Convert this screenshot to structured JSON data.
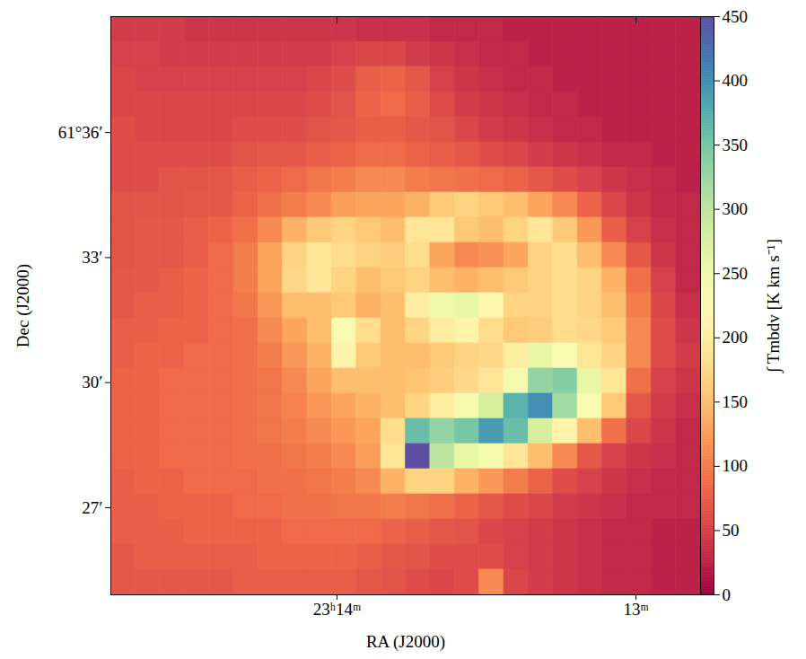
{
  "chart_data": {
    "type": "heatmap",
    "x_label": "RA (J2000)",
    "y_label": "Dec (J2000)",
    "xlim": [
      14.757,
      12.784
    ],
    "xticks": [
      {
        "value": 14,
        "label": "23ʰ14ᵐ"
      },
      {
        "value": 13,
        "label": "13ᵐ"
      }
    ],
    "ylim": [
      24.91,
      38.78
    ],
    "yticks": [
      {
        "value": 27,
        "label": "27′"
      },
      {
        "value": 30,
        "label": "30′"
      },
      {
        "value": 33,
        "label": "33′"
      },
      {
        "value": 36,
        "label": "61°36′"
      }
    ],
    "color": "spectral",
    "colorbar": {
      "label": "∫ Tmbdv [K km s⁻¹]",
      "range": [
        0,
        450
      ],
      "ticks": [
        0,
        50,
        100,
        150,
        200,
        250,
        300,
        350,
        400,
        450
      ]
    },
    "cells": [
      [
        45,
        45,
        45,
        40,
        40,
        40,
        40,
        40,
        40,
        40,
        35,
        35,
        35,
        30,
        30,
        30,
        25,
        25,
        25,
        25,
        25,
        25,
        25,
        25
      ],
      [
        50,
        50,
        45,
        45,
        45,
        45,
        45,
        45,
        45,
        50,
        55,
        55,
        45,
        40,
        35,
        30,
        30,
        25,
        25,
        25,
        25,
        25,
        25,
        25
      ],
      [
        55,
        50,
        50,
        50,
        50,
        50,
        50,
        50,
        55,
        60,
        75,
        80,
        70,
        50,
        40,
        35,
        30,
        30,
        25,
        25,
        25,
        25,
        25,
        25
      ],
      [
        55,
        55,
        55,
        55,
        55,
        55,
        55,
        55,
        60,
        65,
        80,
        85,
        75,
        60,
        45,
        40,
        35,
        30,
        30,
        25,
        25,
        25,
        25,
        25
      ],
      [
        60,
        55,
        55,
        55,
        55,
        60,
        60,
        60,
        65,
        70,
        75,
        75,
        70,
        65,
        55,
        45,
        40,
        35,
        30,
        30,
        25,
        25,
        25,
        25
      ],
      [
        60,
        60,
        60,
        60,
        60,
        65,
        70,
        70,
        75,
        80,
        85,
        85,
        80,
        75,
        70,
        60,
        55,
        45,
        40,
        35,
        30,
        30,
        25,
        25
      ],
      [
        60,
        60,
        65,
        65,
        70,
        75,
        80,
        85,
        95,
        100,
        110,
        110,
        100,
        95,
        90,
        85,
        80,
        70,
        60,
        50,
        40,
        35,
        30,
        25
      ],
      [
        65,
        65,
        65,
        70,
        70,
        80,
        90,
        100,
        110,
        125,
        130,
        130,
        140,
        160,
        170,
        160,
        150,
        130,
        110,
        80,
        55,
        40,
        30,
        30
      ],
      [
        65,
        70,
        70,
        75,
        80,
        90,
        110,
        140,
        160,
        170,
        160,
        150,
        190,
        190,
        160,
        150,
        170,
        190,
        160,
        120,
        75,
        50,
        35,
        30
      ],
      [
        65,
        70,
        70,
        75,
        85,
        100,
        130,
        170,
        190,
        180,
        170,
        165,
        180,
        130,
        110,
        115,
        130,
        170,
        180,
        150,
        110,
        70,
        40,
        30
      ],
      [
        70,
        70,
        75,
        80,
        85,
        100,
        130,
        175,
        190,
        170,
        150,
        160,
        170,
        150,
        140,
        150,
        160,
        170,
        180,
        170,
        140,
        90,
        50,
        30
      ],
      [
        70,
        75,
        75,
        80,
        85,
        95,
        120,
        150,
        150,
        160,
        140,
        150,
        200,
        250,
        260,
        220,
        170,
        170,
        180,
        170,
        150,
        100,
        55,
        35
      ],
      [
        75,
        75,
        80,
        80,
        85,
        90,
        110,
        130,
        150,
        230,
        180,
        150,
        170,
        200,
        210,
        180,
        160,
        165,
        180,
        175,
        160,
        110,
        60,
        40
      ],
      [
        75,
        80,
        80,
        85,
        85,
        90,
        100,
        120,
        140,
        210,
        160,
        150,
        150,
        160,
        170,
        175,
        200,
        260,
        230,
        190,
        170,
        110,
        60,
        45
      ],
      [
        80,
        80,
        85,
        85,
        85,
        90,
        95,
        110,
        130,
        150,
        150,
        150,
        155,
        165,
        175,
        190,
        240,
        330,
        340,
        260,
        190,
        90,
        50,
        40
      ],
      [
        80,
        80,
        85,
        85,
        85,
        90,
        95,
        105,
        120,
        130,
        140,
        150,
        170,
        200,
        240,
        280,
        370,
        400,
        320,
        230,
        160,
        70,
        45,
        35
      ],
      [
        80,
        80,
        85,
        85,
        85,
        90,
        95,
        100,
        110,
        120,
        130,
        180,
        360,
        330,
        350,
        390,
        360,
        280,
        210,
        150,
        90,
        55,
        40,
        30
      ],
      [
        80,
        80,
        85,
        85,
        85,
        90,
        90,
        95,
        100,
        110,
        125,
        190,
        450,
        300,
        260,
        240,
        190,
        150,
        110,
        70,
        50,
        40,
        35,
        30
      ],
      [
        75,
        80,
        80,
        85,
        85,
        85,
        90,
        90,
        95,
        100,
        110,
        140,
        170,
        170,
        140,
        120,
        100,
        80,
        60,
        50,
        40,
        35,
        30,
        30
      ],
      [
        75,
        75,
        80,
        80,
        80,
        85,
        85,
        90,
        90,
        95,
        95,
        100,
        95,
        90,
        80,
        70,
        60,
        55,
        45,
        40,
        35,
        30,
        30,
        30
      ],
      [
        75,
        75,
        75,
        80,
        80,
        80,
        80,
        85,
        85,
        85,
        85,
        80,
        75,
        70,
        65,
        55,
        50,
        45,
        40,
        35,
        30,
        30,
        25,
        25
      ],
      [
        70,
        75,
        75,
        75,
        75,
        75,
        80,
        80,
        80,
        80,
        75,
        70,
        65,
        60,
        60,
        60,
        50,
        45,
        40,
        35,
        30,
        30,
        25,
        25
      ],
      [
        70,
        70,
        70,
        70,
        70,
        75,
        75,
        75,
        75,
        75,
        70,
        65,
        60,
        55,
        60,
        110,
        55,
        45,
        40,
        35,
        30,
        30,
        25,
        25
      ]
    ]
  }
}
